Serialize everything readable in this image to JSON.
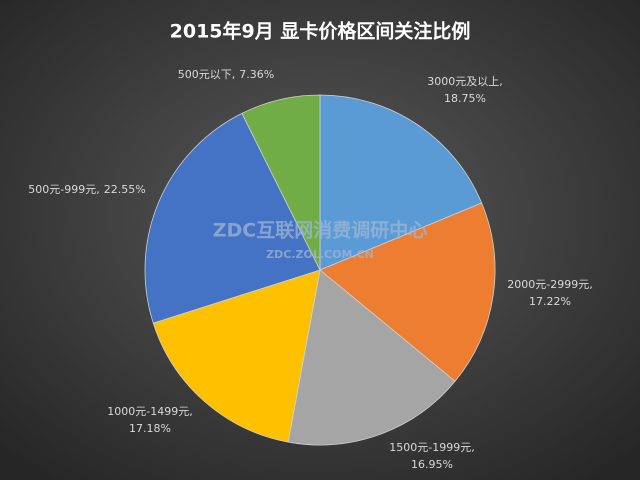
{
  "chart_data": {
    "type": "pie",
    "title": "2015年9月  显卡价格区间关注比例",
    "watermark": "ZDC互联网消费调研中心",
    "watermark_url": "ZDC.ZOL.COM.CN",
    "categories": [
      "3000元及以上,",
      "2000元-2999元,",
      "1500元-1999元,",
      "1000元-1499元,",
      "500元-999元,",
      "500元以下,"
    ],
    "values": [
      18.75,
      17.22,
      16.95,
      17.18,
      22.55,
      7.36
    ],
    "value_labels": [
      "18.75%",
      "17.22%",
      "16.95%",
      "17.18%",
      "22.55%",
      "7.36%"
    ],
    "colors": [
      "#5b9bd5",
      "#ed7d31",
      "#a5a5a5",
      "#ffc000",
      "#4472c4",
      "#70ad47"
    ]
  }
}
